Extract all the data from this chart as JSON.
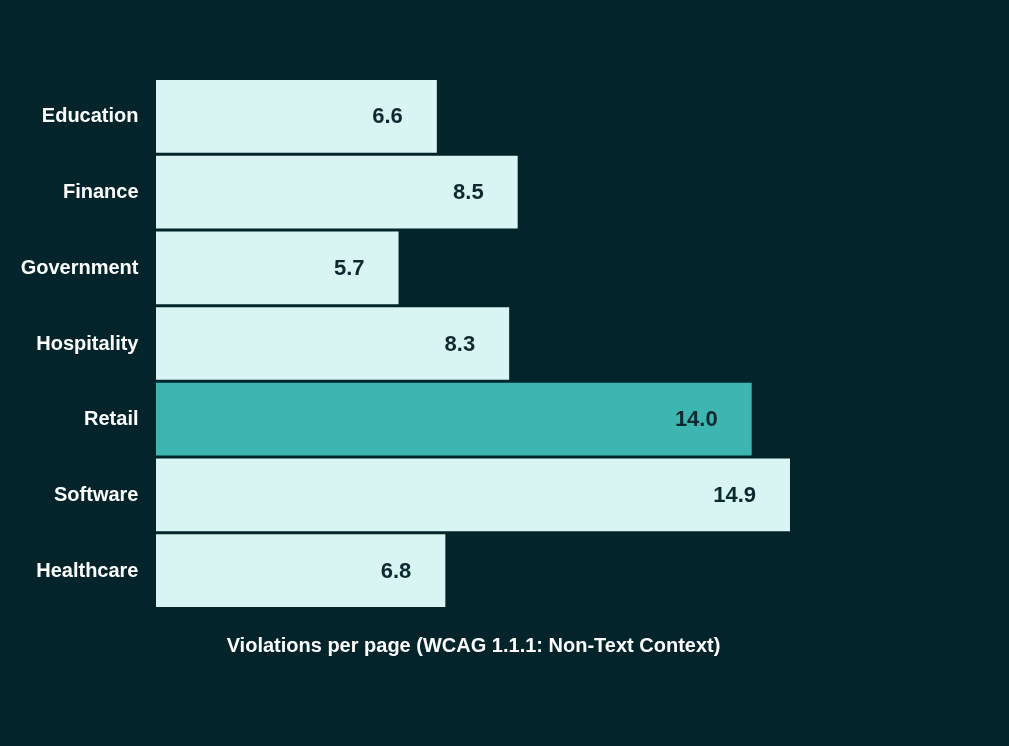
{
  "chart_data": {
    "type": "bar",
    "orientation": "horizontal",
    "xlabel": "Violations per page (WCAG 1.1.1: Non-Text Context)",
    "categories": [
      "Education",
      "Finance",
      "Government",
      "Hospitality",
      "Retail",
      "Software",
      "Healthcare"
    ],
    "values": [
      6.6,
      8.5,
      5.7,
      8.3,
      14.0,
      14.9,
      6.8
    ],
    "colors": [
      "#d8f4f3",
      "#d8f4f3",
      "#d8f4f3",
      "#d8f4f3",
      "#3db5b0",
      "#d8f4f3",
      "#d8f4f3"
    ],
    "value_labels": [
      "6.6",
      "8.5",
      "5.7",
      "8.3",
      "14.0",
      "14.9",
      "6.8"
    ],
    "tick_labels": "y",
    "grid": false
  }
}
